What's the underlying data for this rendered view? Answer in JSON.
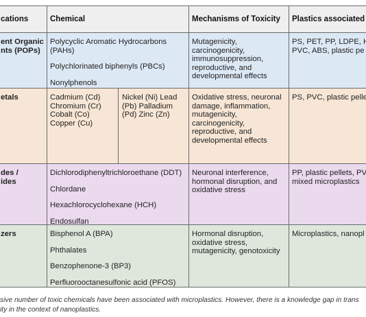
{
  "table": {
    "header": [
      "cations",
      "Chemical",
      "Mechanisms of Toxicity",
      "Plastics associated w"
    ],
    "rows": [
      [
        [
          [
            "ent Organic",
            "nts (POPs)"
          ]
        ],
        [
          [
            "Polycyclic Aromatic Hydrocarbons",
            "(PAHs)"
          ],
          [
            "Polychlorinated biphenyls (PBCs)"
          ],
          [
            "Nonylphenols"
          ]
        ],
        [
          [
            "Mutagenicity,",
            "carcinogenicity,",
            "immunosuppression,",
            "reproductive, and",
            "developmental effects"
          ]
        ],
        [
          [
            "PS, PET, PP, LDPE, HI",
            "PVC, ABS, plastic pe"
          ]
        ]
      ],
      [
        [
          [
            "etals"
          ]
        ],
        {
          "columns": [
            [
              "Cadmium (Cd)",
              "Chromium (Cr)",
              "Cobalt (Co)",
              "Copper (Cu)"
            ],
            [
              "Nickel (Ni) Lead",
              "(Pb)  Palladium",
              "(Pd) Zinc (Zn)"
            ]
          ]
        },
        [
          [
            "Oxidative stress, neuronal",
            "damage, inflammation,",
            "mutagenicity,",
            "carcinogenicity,",
            "reproductive, and",
            "developmental effects"
          ]
        ],
        [
          [
            "PS, PVC,  plastic pelle"
          ]
        ]
      ],
      [
        [
          [
            "des /",
            "ides"
          ]
        ],
        [
          [
            "Dichlorodiphenyltrichloroethane (DDT)"
          ],
          [
            "Chlordane"
          ],
          [
            "Hexachlorocyclohexane (HCH)"
          ],
          [
            "Endosulfan"
          ]
        ],
        [
          [
            "Neuronal interference,",
            "hormonal disruption, and",
            "oxidative stress"
          ]
        ],
        [
          [
            "PP, plastic pellets, PV",
            "mixed microplastics"
          ]
        ]
      ],
      [
        [
          [
            "zers"
          ]
        ],
        [
          [
            "Bisphenol A (BPA)"
          ],
          [
            "Phthalates"
          ],
          [
            "Benzophenone-3 (BP3)"
          ],
          [
            "Perfluorooctanesulfonic acid (PFOS)"
          ]
        ],
        [
          [
            "Hormonal disruption,",
            "oxidative stress,",
            "mutagenicity, genotoxicity"
          ]
        ],
        [
          [
            "Microplastics, nanopl"
          ]
        ]
      ]
    ]
  },
  "caption": [
    "sive number of toxic chemicals have been associated with microplastics. However, there is a knowledge gap in trans",
    "ity in the context of nanoplastics."
  ]
}
